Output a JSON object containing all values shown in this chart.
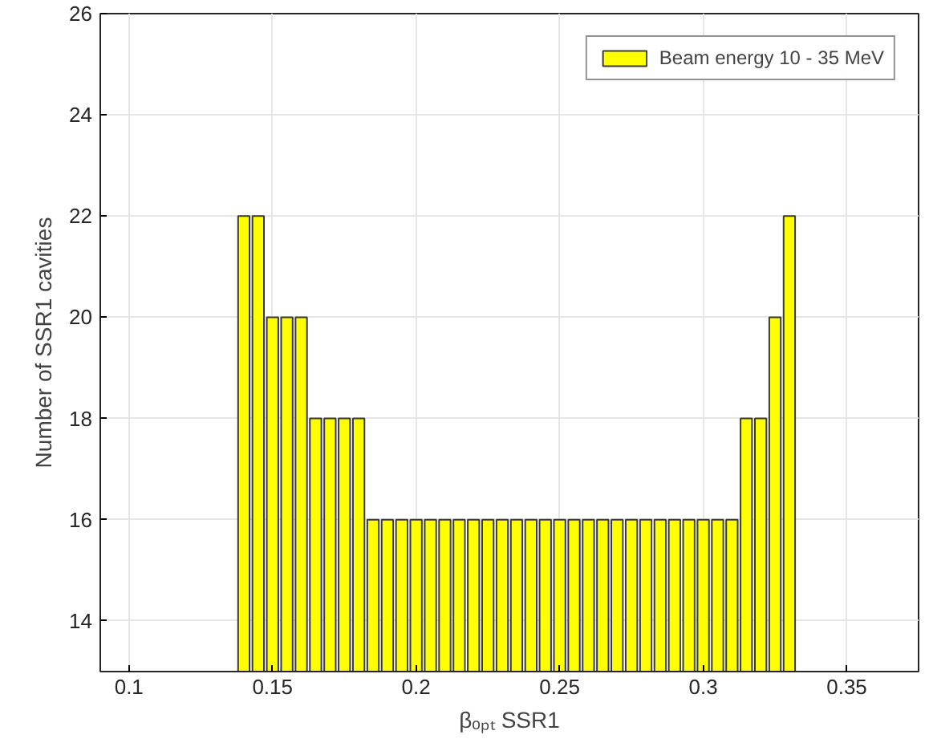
{
  "chart_data": {
    "type": "bar",
    "xlabel": "βₒₚₜ SSR1",
    "ylabel": "Number of SSR1 cavities",
    "x": [
      0.14,
      0.145,
      0.15,
      0.155,
      0.16,
      0.165,
      0.17,
      0.175,
      0.18,
      0.185,
      0.19,
      0.195,
      0.2,
      0.205,
      0.21,
      0.215,
      0.22,
      0.225,
      0.23,
      0.235,
      0.24,
      0.245,
      0.25,
      0.255,
      0.26,
      0.265,
      0.27,
      0.275,
      0.28,
      0.285,
      0.29,
      0.295,
      0.3,
      0.305,
      0.31,
      0.315,
      0.32,
      0.325,
      0.33
    ],
    "series": [
      {
        "name": "Beam energy 10 - 35 MeV",
        "color": "#ffff00",
        "values": [
          22,
          22,
          20,
          20,
          20,
          18,
          18,
          18,
          18,
          16,
          16,
          16,
          16,
          16,
          16,
          16,
          16,
          16,
          16,
          16,
          16,
          16,
          16,
          16,
          16,
          16,
          16,
          16,
          16,
          16,
          16,
          16,
          16,
          16,
          16,
          18,
          18,
          20,
          22
        ]
      }
    ],
    "xlim": [
      0.09,
      0.375
    ],
    "xticks": [
      {
        "value": 0.1,
        "label": "0.1"
      },
      {
        "value": 0.15,
        "label": "0.15"
      },
      {
        "value": 0.2,
        "label": "0.2"
      },
      {
        "value": 0.25,
        "label": "0.25"
      },
      {
        "value": 0.3,
        "label": "0.3"
      },
      {
        "value": 0.35,
        "label": "0.35"
      }
    ],
    "ylim": [
      13,
      26
    ],
    "yticks": [
      14,
      16,
      18,
      20,
      22,
      24,
      26
    ],
    "grid": true,
    "legend": "top right"
  }
}
